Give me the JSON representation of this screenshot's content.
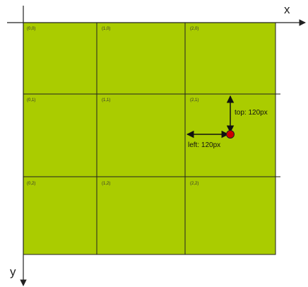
{
  "axes": {
    "x_label": "x",
    "y_label": "y"
  },
  "grid": {
    "cell_labels": [
      [
        "(0,0)",
        "(1,0)",
        "(2,0)"
      ],
      [
        "(0,1)",
        "(1,1)",
        "(2,1)"
      ],
      [
        "(0,2)",
        "(1,2)",
        "(2,2)"
      ]
    ]
  },
  "annotations": {
    "top_label": "top: 120px",
    "left_label": "left: 120px"
  },
  "colors": {
    "fill": "#aacc00",
    "lines": "#222222",
    "point": "#cc0000"
  }
}
